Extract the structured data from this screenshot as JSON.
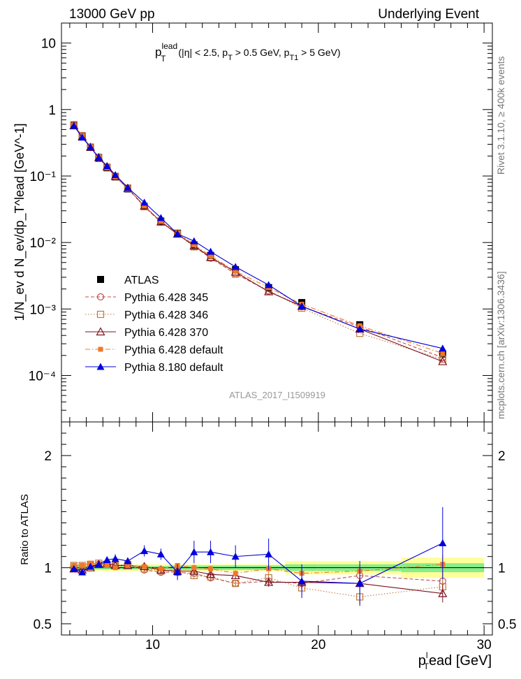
{
  "header": {
    "left": "13000 GeV pp",
    "right": "Underlying Event"
  },
  "side_texts": {
    "rivet": "Rivet 3.1.10, ≥ 400k events",
    "mcplots": "mcplots.cern.ch [arXiv:1306.3436]"
  },
  "watermark": "ATLAS_2017_I1509919",
  "colors": {
    "atlas": "#000000",
    "p345": "#c05050",
    "p346": "#c07838",
    "p370": "#7a1020",
    "pdef": "#f07828",
    "p8": "#0000dd",
    "band_outer": "#ffff99",
    "band_inner": "#88ee88"
  },
  "chart_data": [
    {
      "type": "line",
      "title_main": "p",
      "title_sub": "T",
      "title_sup": "lead",
      "title_rest": " (|η| < 2.5, p",
      "title_sub2": "T",
      "title_rest2": " > 0.5 GeV, p",
      "title_sub3": "T1",
      "title_rest3": " > 5 GeV)",
      "ylabel": "1/N_ev d N_ev/dp_T^lead [GeV^-1]",
      "yscale": "log",
      "ylim": [
        2e-05,
        20
      ],
      "xlim": [
        4.5,
        30.5
      ],
      "ytick_labels": [
        "10",
        "1",
        "10⁻¹",
        "10⁻²",
        "10⁻³",
        "10⁻⁴"
      ],
      "x": [
        5.25,
        5.75,
        6.25,
        6.75,
        7.25,
        7.75,
        8.5,
        9.5,
        10.5,
        11.5,
        12.5,
        13.5,
        15,
        17,
        19,
        22.5,
        27.5
      ],
      "series": [
        {
          "name": "ATLAS",
          "key": "atlas",
          "marker": "square-filled",
          "style": "none",
          "values": [
            0.58,
            0.4,
            0.27,
            0.185,
            0.133,
            0.097,
            0.064,
            0.035,
            0.021,
            0.0138,
            0.0092,
            0.0064,
            0.0039,
            0.0021,
            0.00125,
            0.00058,
            0.00021
          ]
        },
        {
          "name": "Pythia 6.428 345",
          "key": "p345",
          "marker": "circle-open",
          "style": "dash",
          "values": [
            0.575,
            0.4,
            0.268,
            0.188,
            0.135,
            0.098,
            0.065,
            0.0345,
            0.0202,
            0.0135,
            0.0088,
            0.0058,
            0.0034,
            0.00185,
            0.00108,
            0.00054,
            0.000186
          ]
        },
        {
          "name": "Pythia 6.428 346",
          "key": "p346",
          "marker": "square-open",
          "style": "dot",
          "values": [
            0.59,
            0.405,
            0.273,
            0.192,
            0.136,
            0.099,
            0.066,
            0.0345,
            0.0203,
            0.0134,
            0.0086,
            0.0059,
            0.00335,
            0.0019,
            0.00103,
            0.00043,
            0.000175
          ]
        },
        {
          "name": "Pythia 6.428 370",
          "key": "p370",
          "marker": "triangle-open",
          "style": "solid",
          "values": [
            0.57,
            0.39,
            0.27,
            0.19,
            0.138,
            0.099,
            0.065,
            0.0355,
            0.0205,
            0.0134,
            0.0089,
            0.006,
            0.0036,
            0.00182,
            0.0011,
            0.0005,
            0.000162
          ]
        },
        {
          "name": "Pythia 6.428 default",
          "key": "pdef",
          "marker": "square-small",
          "style": "dashdot",
          "values": [
            0.585,
            0.405,
            0.275,
            0.19,
            0.135,
            0.097,
            0.065,
            0.0355,
            0.0208,
            0.0141,
            0.0092,
            0.0063,
            0.0037,
            0.0021,
            0.00118,
            0.00056,
            0.000215
          ]
        },
        {
          "name": "Pythia 8.180 default",
          "key": "p8",
          "marker": "triangle-filled",
          "style": "solid",
          "values": [
            0.57,
            0.38,
            0.272,
            0.19,
            0.142,
            0.104,
            0.067,
            0.04,
            0.0235,
            0.0135,
            0.0105,
            0.0073,
            0.0043,
            0.0023,
            0.0011,
            0.0005,
            0.000255
          ]
        }
      ]
    },
    {
      "type": "line",
      "xlabel_main": "p",
      "xlabel_sub": "T",
      "xlabel_sup": "l",
      "xlabel_rest": "ead [GeV]",
      "ylabel": "Ratio to ATLAS",
      "ylim": [
        0.4,
        2.3
      ],
      "xlim": [
        4.5,
        30.5
      ],
      "yticks": [
        0.5,
        1,
        2
      ],
      "ytick_labels": [
        "0.5",
        "1",
        "2"
      ],
      "xticks": [
        10,
        20,
        30
      ],
      "xtick_labels": [
        "10",
        "20",
        "30"
      ],
      "band_edges": [
        5,
        5.5,
        6,
        6.5,
        7,
        7.5,
        8,
        9,
        10,
        11,
        12,
        13,
        14,
        16,
        18,
        20,
        25,
        30
      ],
      "band_outer_half": [
        0.03,
        0.03,
        0.03,
        0.03,
        0.03,
        0.03,
        0.03,
        0.03,
        0.03,
        0.03,
        0.03,
        0.03,
        0.03,
        0.03,
        0.06,
        0.06,
        0.09
      ],
      "band_inner_half": [
        0.015,
        0.015,
        0.015,
        0.015,
        0.015,
        0.015,
        0.015,
        0.015,
        0.015,
        0.02,
        0.02,
        0.02,
        0.02,
        0.02,
        0.03,
        0.03,
        0.04
      ],
      "series": [
        {
          "key": "p345",
          "values": [
            1.0,
            0.98,
            1.03,
            1.03,
            1.04,
            1.02,
            1.02,
            0.98,
            0.96,
            0.96,
            0.95,
            0.91,
            0.86,
            0.88,
            0.86,
            0.93,
            0.88
          ],
          "errors": [
            0.01,
            0.01,
            0.01,
            0.01,
            0.01,
            0.01,
            0.01,
            0.02,
            0.02,
            0.02,
            0.03,
            0.03,
            0.03,
            0.04,
            0.05,
            0.06,
            0.08
          ]
        },
        {
          "key": "p346",
          "values": [
            1.02,
            1.02,
            1.03,
            1.04,
            1.03,
            1.02,
            1.03,
            0.99,
            0.97,
            0.97,
            0.93,
            0.92,
            0.86,
            0.91,
            0.82,
            0.74,
            0.83
          ],
          "errors": [
            0.01,
            0.01,
            0.01,
            0.01,
            0.01,
            0.01,
            0.01,
            0.02,
            0.02,
            0.02,
            0.03,
            0.03,
            0.03,
            0.04,
            0.05,
            0.06,
            0.08
          ]
        },
        {
          "key": "p370",
          "values": [
            0.99,
            0.98,
            1.0,
            1.03,
            1.04,
            1.02,
            1.02,
            1.01,
            0.98,
            0.97,
            0.97,
            0.94,
            0.93,
            0.87,
            0.87,
            0.86,
            0.77
          ],
          "errors": [
            0.01,
            0.01,
            0.01,
            0.01,
            0.01,
            0.01,
            0.01,
            0.02,
            0.02,
            0.02,
            0.03,
            0.03,
            0.03,
            0.04,
            0.05,
            0.06,
            0.08
          ]
        },
        {
          "key": "pdef",
          "values": [
            1.02,
            1.02,
            1.04,
            1.03,
            1.02,
            1.0,
            1.02,
            1.01,
            0.99,
            1.02,
            1.0,
            0.99,
            0.95,
            0.99,
            0.95,
            0.97,
            1.03
          ],
          "errors": [
            0.01,
            0.01,
            0.01,
            0.01,
            0.01,
            0.01,
            0.01,
            0.02,
            0.02,
            0.02,
            0.03,
            0.03,
            0.03,
            0.04,
            0.05,
            0.06,
            0.08
          ]
        },
        {
          "key": "p8",
          "values": [
            0.99,
            0.96,
            1.01,
            1.03,
            1.07,
            1.08,
            1.06,
            1.15,
            1.12,
            0.96,
            1.14,
            1.14,
            1.1,
            1.12,
            0.88,
            0.86,
            1.22
          ],
          "errors": [
            0.02,
            0.02,
            0.02,
            0.02,
            0.03,
            0.04,
            0.03,
            0.05,
            0.05,
            0.07,
            0.1,
            0.1,
            0.1,
            0.14,
            0.15,
            0.2,
            0.32
          ]
        }
      ]
    }
  ]
}
